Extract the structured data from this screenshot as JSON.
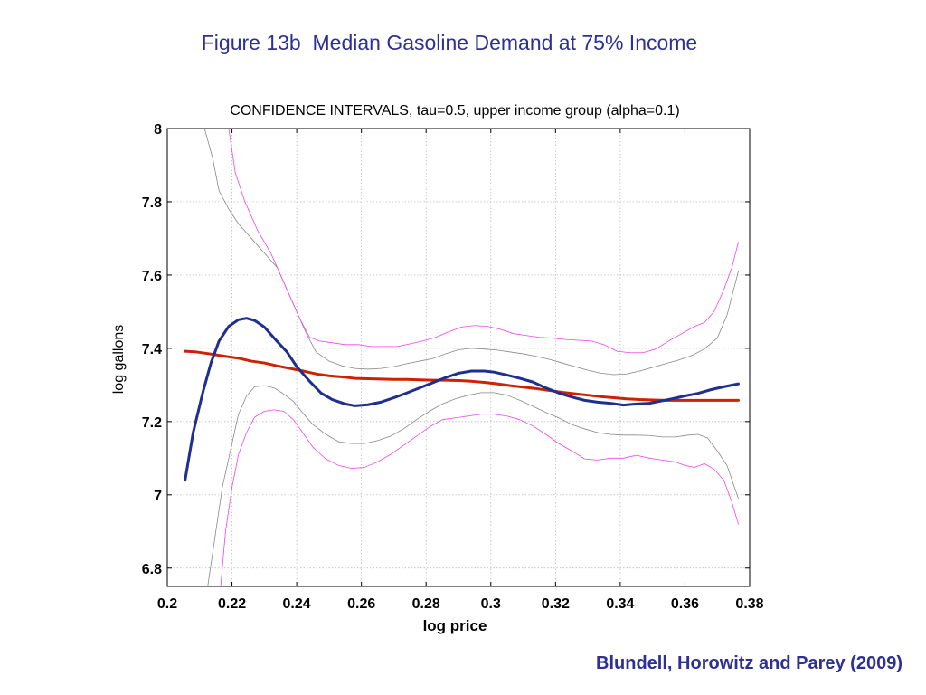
{
  "slide": {
    "title": "Figure 13b  Median Gasoline Demand at 75% Income",
    "citation": "Blundell, Horowitz and Parey (2009)"
  },
  "chart_data": {
    "type": "line",
    "title": "CONFIDENCE INTERVALS, tau=0.5, upper income group (alpha=0.1)",
    "xlabel": "log price",
    "ylabel": "log gallons",
    "xlim": [
      0.2,
      0.38
    ],
    "ylim": [
      6.75,
      8.0
    ],
    "xticks": [
      0.2,
      0.22,
      0.24,
      0.26,
      0.28,
      0.3,
      0.32,
      0.34,
      0.36,
      0.38
    ],
    "xtick_labels": [
      "0.2",
      "0.22",
      "0.24",
      "0.26",
      "0.28",
      "0.3",
      "0.32",
      "0.34",
      "0.36",
      "0.38"
    ],
    "yticks": [
      6.8,
      7.0,
      7.2,
      7.4,
      7.6,
      7.8,
      8.0
    ],
    "ytick_labels": [
      "6.8",
      "7",
      "7.2",
      "7.4",
      "7.6",
      "7.8",
      "8"
    ],
    "grid": true,
    "series": [
      {
        "color": "#1f2f8f",
        "width": 3,
        "points": [
          [
            0.2055,
            7.04
          ],
          [
            0.208,
            7.17
          ],
          [
            0.211,
            7.28
          ],
          [
            0.2135,
            7.36
          ],
          [
            0.216,
            7.42
          ],
          [
            0.219,
            7.46
          ],
          [
            0.222,
            7.478
          ],
          [
            0.2245,
            7.482
          ],
          [
            0.227,
            7.476
          ],
          [
            0.23,
            7.458
          ],
          [
            0.233,
            7.428
          ],
          [
            0.237,
            7.39
          ],
          [
            0.24,
            7.35
          ],
          [
            0.244,
            7.31
          ],
          [
            0.2475,
            7.278
          ],
          [
            0.251,
            7.26
          ],
          [
            0.255,
            7.248
          ],
          [
            0.258,
            7.243
          ],
          [
            0.262,
            7.246
          ],
          [
            0.266,
            7.253
          ],
          [
            0.27,
            7.265
          ],
          [
            0.274,
            7.278
          ],
          [
            0.278,
            7.292
          ],
          [
            0.282,
            7.306
          ],
          [
            0.286,
            7.32
          ],
          [
            0.29,
            7.332
          ],
          [
            0.294,
            7.338
          ],
          [
            0.298,
            7.338
          ],
          [
            0.301,
            7.335
          ],
          [
            0.305,
            7.327
          ],
          [
            0.309,
            7.318
          ],
          [
            0.313,
            7.308
          ],
          [
            0.317,
            7.292
          ],
          [
            0.321,
            7.278
          ],
          [
            0.325,
            7.267
          ],
          [
            0.329,
            7.258
          ],
          [
            0.333,
            7.253
          ],
          [
            0.337,
            7.25
          ],
          [
            0.341,
            7.245
          ],
          [
            0.345,
            7.248
          ],
          [
            0.349,
            7.25
          ],
          [
            0.352,
            7.255
          ],
          [
            0.356,
            7.262
          ],
          [
            0.36,
            7.27
          ],
          [
            0.364,
            7.277
          ],
          [
            0.368,
            7.287
          ],
          [
            0.372,
            7.295
          ],
          [
            0.3765,
            7.303
          ]
        ]
      },
      {
        "color": "#cc2200",
        "width": 3,
        "points": [
          [
            0.2055,
            7.392
          ],
          [
            0.209,
            7.39
          ],
          [
            0.213,
            7.385
          ],
          [
            0.218,
            7.378
          ],
          [
            0.222,
            7.373
          ],
          [
            0.226,
            7.365
          ],
          [
            0.23,
            7.36
          ],
          [
            0.234,
            7.352
          ],
          [
            0.238,
            7.345
          ],
          [
            0.242,
            7.338
          ],
          [
            0.246,
            7.33
          ],
          [
            0.25,
            7.325
          ],
          [
            0.254,
            7.322
          ],
          [
            0.258,
            7.318
          ],
          [
            0.262,
            7.317
          ],
          [
            0.266,
            7.316
          ],
          [
            0.27,
            7.315
          ],
          [
            0.274,
            7.315
          ],
          [
            0.278,
            7.314
          ],
          [
            0.282,
            7.313
          ],
          [
            0.286,
            7.313
          ],
          [
            0.29,
            7.312
          ],
          [
            0.294,
            7.31
          ],
          [
            0.298,
            7.307
          ],
          [
            0.302,
            7.303
          ],
          [
            0.306,
            7.298
          ],
          [
            0.31,
            7.294
          ],
          [
            0.314,
            7.29
          ],
          [
            0.318,
            7.285
          ],
          [
            0.322,
            7.28
          ],
          [
            0.326,
            7.276
          ],
          [
            0.33,
            7.272
          ],
          [
            0.334,
            7.268
          ],
          [
            0.338,
            7.265
          ],
          [
            0.342,
            7.262
          ],
          [
            0.346,
            7.26
          ],
          [
            0.35,
            7.259
          ],
          [
            0.354,
            7.258
          ],
          [
            0.358,
            7.258
          ],
          [
            0.362,
            7.258
          ],
          [
            0.366,
            7.258
          ],
          [
            0.37,
            7.258
          ],
          [
            0.3765,
            7.258
          ]
        ]
      },
      {
        "color": "#888888",
        "width": 0.8,
        "points": [
          [
            0.2115,
            8.0
          ],
          [
            0.214,
            7.92
          ],
          [
            0.216,
            7.83
          ],
          [
            0.219,
            7.78
          ],
          [
            0.222,
            7.74
          ],
          [
            0.226,
            7.7
          ],
          [
            0.23,
            7.66
          ],
          [
            0.234,
            7.62
          ],
          [
            0.237,
            7.56
          ],
          [
            0.24,
            7.5
          ],
          [
            0.243,
            7.44
          ],
          [
            0.246,
            7.39
          ],
          [
            0.25,
            7.365
          ],
          [
            0.254,
            7.352
          ],
          [
            0.258,
            7.345
          ],
          [
            0.262,
            7.343
          ],
          [
            0.266,
            7.345
          ],
          [
            0.27,
            7.35
          ],
          [
            0.274,
            7.358
          ],
          [
            0.278,
            7.365
          ],
          [
            0.282,
            7.372
          ],
          [
            0.286,
            7.385
          ],
          [
            0.29,
            7.396
          ],
          [
            0.294,
            7.4
          ],
          [
            0.298,
            7.398
          ],
          [
            0.302,
            7.395
          ],
          [
            0.306,
            7.39
          ],
          [
            0.31,
            7.385
          ],
          [
            0.314,
            7.378
          ],
          [
            0.318,
            7.37
          ],
          [
            0.322,
            7.36
          ],
          [
            0.326,
            7.35
          ],
          [
            0.33,
            7.34
          ],
          [
            0.334,
            7.332
          ],
          [
            0.338,
            7.328
          ],
          [
            0.342,
            7.33
          ],
          [
            0.346,
            7.338
          ],
          [
            0.35,
            7.348
          ],
          [
            0.354,
            7.358
          ],
          [
            0.358,
            7.368
          ],
          [
            0.362,
            7.38
          ],
          [
            0.366,
            7.398
          ],
          [
            0.37,
            7.428
          ],
          [
            0.373,
            7.49
          ],
          [
            0.3765,
            7.61
          ]
        ]
      },
      {
        "color": "#888888",
        "width": 0.8,
        "points": [
          [
            0.2125,
            6.75
          ],
          [
            0.215,
            6.9
          ],
          [
            0.217,
            7.02
          ],
          [
            0.219,
            7.1
          ],
          [
            0.222,
            7.22
          ],
          [
            0.2245,
            7.27
          ],
          [
            0.227,
            7.295
          ],
          [
            0.23,
            7.298
          ],
          [
            0.233,
            7.292
          ],
          [
            0.236,
            7.275
          ],
          [
            0.239,
            7.255
          ],
          [
            0.242,
            7.222
          ],
          [
            0.245,
            7.192
          ],
          [
            0.249,
            7.165
          ],
          [
            0.253,
            7.145
          ],
          [
            0.257,
            7.14
          ],
          [
            0.261,
            7.14
          ],
          [
            0.265,
            7.148
          ],
          [
            0.269,
            7.16
          ],
          [
            0.273,
            7.18
          ],
          [
            0.277,
            7.205
          ],
          [
            0.281,
            7.228
          ],
          [
            0.285,
            7.248
          ],
          [
            0.289,
            7.262
          ],
          [
            0.293,
            7.272
          ],
          [
            0.297,
            7.279
          ],
          [
            0.301,
            7.279
          ],
          [
            0.305,
            7.272
          ],
          [
            0.309,
            7.258
          ],
          [
            0.313,
            7.242
          ],
          [
            0.317,
            7.225
          ],
          [
            0.321,
            7.21
          ],
          [
            0.325,
            7.192
          ],
          [
            0.329,
            7.18
          ],
          [
            0.333,
            7.17
          ],
          [
            0.337,
            7.165
          ],
          [
            0.341,
            7.163
          ],
          [
            0.345,
            7.163
          ],
          [
            0.349,
            7.162
          ],
          [
            0.353,
            7.158
          ],
          [
            0.357,
            7.158
          ],
          [
            0.361,
            7.163
          ],
          [
            0.364,
            7.165
          ],
          [
            0.367,
            7.155
          ],
          [
            0.37,
            7.12
          ],
          [
            0.373,
            7.08
          ],
          [
            0.3765,
            6.99
          ]
        ]
      },
      {
        "color": "#ee44ee",
        "width": 0.8,
        "points": [
          [
            0.219,
            8.0
          ],
          [
            0.221,
            7.88
          ],
          [
            0.224,
            7.8
          ],
          [
            0.228,
            7.72
          ],
          [
            0.232,
            7.66
          ],
          [
            0.235,
            7.6
          ],
          [
            0.238,
            7.54
          ],
          [
            0.241,
            7.48
          ],
          [
            0.244,
            7.43
          ],
          [
            0.247,
            7.42
          ],
          [
            0.251,
            7.415
          ],
          [
            0.255,
            7.41
          ],
          [
            0.259,
            7.41
          ],
          [
            0.263,
            7.405
          ],
          [
            0.267,
            7.405
          ],
          [
            0.271,
            7.405
          ],
          [
            0.275,
            7.412
          ],
          [
            0.279,
            7.42
          ],
          [
            0.283,
            7.43
          ],
          [
            0.287,
            7.445
          ],
          [
            0.291,
            7.458
          ],
          [
            0.295,
            7.462
          ],
          [
            0.299,
            7.46
          ],
          [
            0.303,
            7.452
          ],
          [
            0.307,
            7.44
          ],
          [
            0.311,
            7.435
          ],
          [
            0.315,
            7.43
          ],
          [
            0.319,
            7.428
          ],
          [
            0.323,
            7.424
          ],
          [
            0.327,
            7.422
          ],
          [
            0.331,
            7.42
          ],
          [
            0.335,
            7.41
          ],
          [
            0.339,
            7.392
          ],
          [
            0.343,
            7.388
          ],
          [
            0.347,
            7.388
          ],
          [
            0.351,
            7.398
          ],
          [
            0.355,
            7.42
          ],
          [
            0.359,
            7.44
          ],
          [
            0.363,
            7.46
          ],
          [
            0.366,
            7.47
          ],
          [
            0.369,
            7.5
          ],
          [
            0.372,
            7.56
          ],
          [
            0.3745,
            7.62
          ],
          [
            0.3765,
            7.69
          ]
        ]
      },
      {
        "color": "#ee44ee",
        "width": 0.8,
        "points": [
          [
            0.2165,
            6.75
          ],
          [
            0.218,
            6.9
          ],
          [
            0.22,
            7.02
          ],
          [
            0.222,
            7.11
          ],
          [
            0.2245,
            7.17
          ],
          [
            0.227,
            7.212
          ],
          [
            0.23,
            7.228
          ],
          [
            0.233,
            7.232
          ],
          [
            0.236,
            7.228
          ],
          [
            0.239,
            7.205
          ],
          [
            0.242,
            7.168
          ],
          [
            0.245,
            7.13
          ],
          [
            0.249,
            7.098
          ],
          [
            0.253,
            7.08
          ],
          [
            0.257,
            7.072
          ],
          [
            0.261,
            7.075
          ],
          [
            0.265,
            7.09
          ],
          [
            0.269,
            7.11
          ],
          [
            0.273,
            7.135
          ],
          [
            0.277,
            7.16
          ],
          [
            0.281,
            7.185
          ],
          [
            0.285,
            7.205
          ],
          [
            0.289,
            7.21
          ],
          [
            0.293,
            7.215
          ],
          [
            0.297,
            7.22
          ],
          [
            0.301,
            7.22
          ],
          [
            0.305,
            7.215
          ],
          [
            0.309,
            7.205
          ],
          [
            0.313,
            7.188
          ],
          [
            0.317,
            7.165
          ],
          [
            0.321,
            7.14
          ],
          [
            0.325,
            7.12
          ],
          [
            0.329,
            7.098
          ],
          [
            0.333,
            7.095
          ],
          [
            0.337,
            7.1
          ],
          [
            0.341,
            7.1
          ],
          [
            0.345,
            7.108
          ],
          [
            0.349,
            7.1
          ],
          [
            0.353,
            7.095
          ],
          [
            0.357,
            7.09
          ],
          [
            0.36,
            7.08
          ],
          [
            0.363,
            7.075
          ],
          [
            0.366,
            7.085
          ],
          [
            0.369,
            7.07
          ],
          [
            0.372,
            7.04
          ],
          [
            0.3745,
            6.98
          ],
          [
            0.3765,
            6.92
          ]
        ]
      }
    ]
  }
}
